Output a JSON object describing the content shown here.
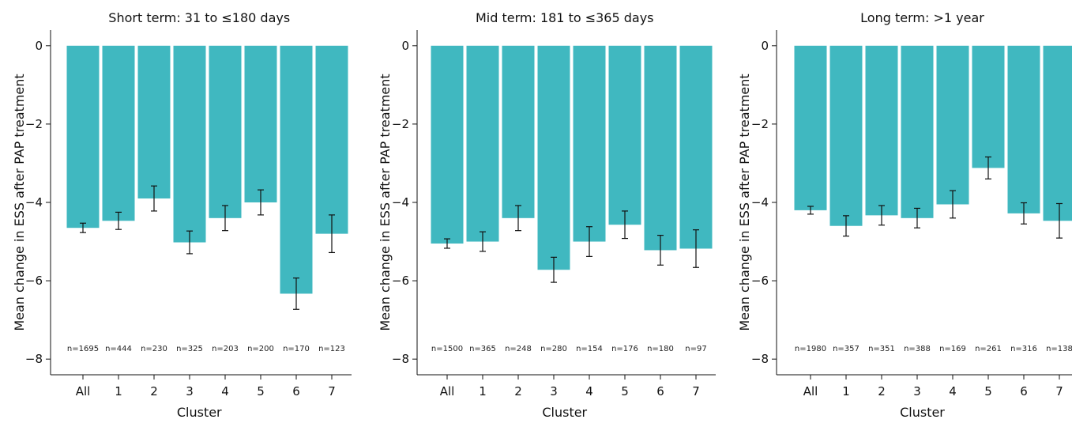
{
  "chart_data": [
    {
      "type": "bar",
      "title": "Short term: 31 to ≤180 days",
      "xlabel": "Cluster",
      "ylabel": "Mean change in ESS after PAP treatment",
      "categories": [
        "All",
        "1",
        "2",
        "3",
        "4",
        "5",
        "6",
        "7"
      ],
      "values": [
        -4.65,
        -4.47,
        -3.9,
        -5.02,
        -4.4,
        -4.0,
        -6.33,
        -4.8
      ],
      "error": [
        0.12,
        0.22,
        0.32,
        0.29,
        0.32,
        0.32,
        0.4,
        0.48
      ],
      "n_labels": [
        "n=1695",
        "n=444",
        "n=230",
        "n=325",
        "n=203",
        "n=200",
        "n=170",
        "n=123"
      ],
      "ylim": [
        -8.4,
        0.4
      ],
      "yticks": [
        0,
        -2,
        -4,
        -6,
        -8
      ],
      "ytick_labels": [
        "0",
        "−2",
        "−4",
        "−6",
        "−8"
      ],
      "color": "#40b8c0"
    },
    {
      "type": "bar",
      "title": "Mid term: 181 to ≤365 days",
      "xlabel": "Cluster",
      "ylabel": "Mean change in ESS after PAP treatment",
      "categories": [
        "All",
        "1",
        "2",
        "3",
        "4",
        "5",
        "6",
        "7"
      ],
      "values": [
        -5.05,
        -5.0,
        -4.4,
        -5.72,
        -5.0,
        -4.57,
        -5.22,
        -5.18
      ],
      "error": [
        0.12,
        0.25,
        0.32,
        0.32,
        0.38,
        0.35,
        0.38,
        0.48
      ],
      "n_labels": [
        "n=1500",
        "n=365",
        "n=248",
        "n=280",
        "n=154",
        "n=176",
        "n=180",
        "n=97"
      ],
      "ylim": [
        -8.4,
        0.4
      ],
      "yticks": [
        0,
        -2,
        -4,
        -6,
        -8
      ],
      "ytick_labels": [
        "0",
        "−2",
        "−4",
        "−6",
        "−8"
      ],
      "color": "#40b8c0"
    },
    {
      "type": "bar",
      "title": "Long term: >1 year",
      "xlabel": "Cluster",
      "ylabel": "Mean change in ESS after PAP treatment",
      "categories": [
        "All",
        "1",
        "2",
        "3",
        "4",
        "5",
        "6",
        "7"
      ],
      "values": [
        -4.2,
        -4.6,
        -4.33,
        -4.4,
        -4.05,
        -3.12,
        -4.28,
        -4.47
      ],
      "error": [
        0.1,
        0.26,
        0.25,
        0.25,
        0.35,
        0.28,
        0.27,
        0.44
      ],
      "n_labels": [
        "n=1980",
        "n=357",
        "n=351",
        "n=388",
        "n=169",
        "n=261",
        "n=316",
        "n=138"
      ],
      "ylim": [
        -8.4,
        0.4
      ],
      "yticks": [
        0,
        -2,
        -4,
        -6,
        -8
      ],
      "ytick_labels": [
        "0",
        "−2",
        "−4",
        "−6",
        "−8"
      ],
      "color": "#40b8c0"
    }
  ]
}
